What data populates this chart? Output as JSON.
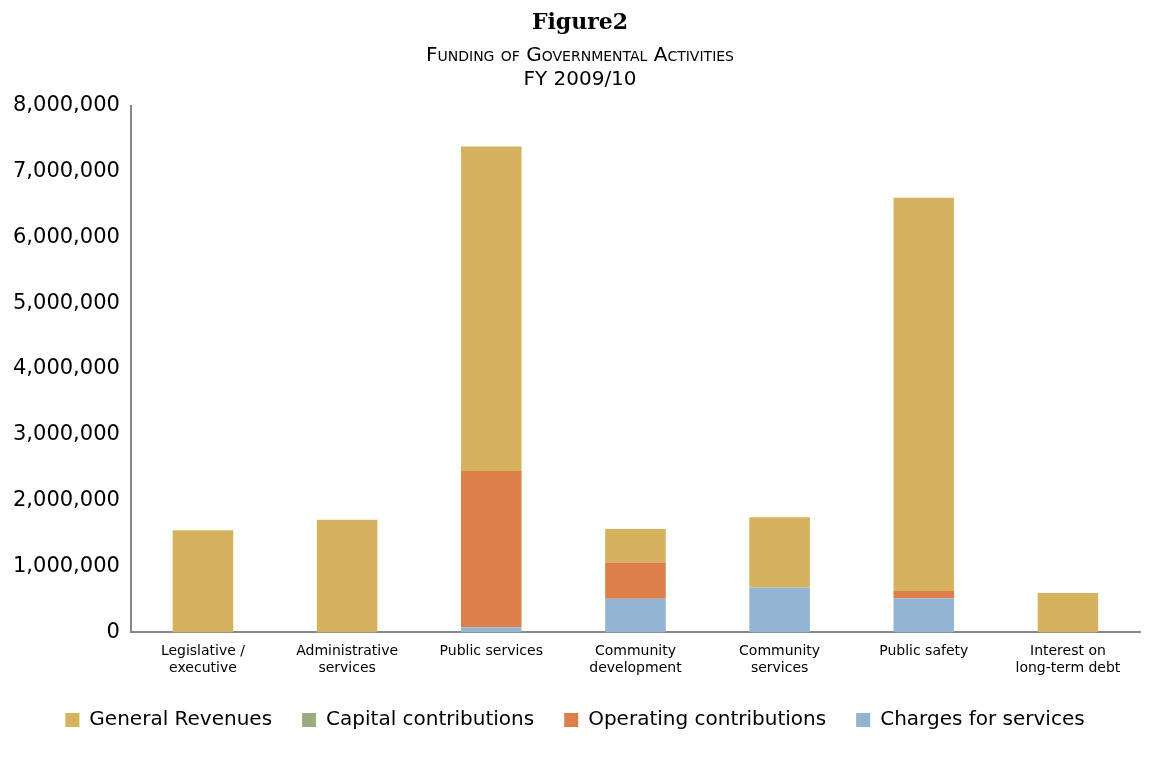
{
  "chart_data": {
    "type": "bar",
    "title": "Figure2",
    "subtitle": "Funding of Governmental Activities\nFY 2009/10",
    "categories": [
      "Legislative / executive",
      "Administrative services",
      "Public services",
      "Community development",
      "Community services",
      "Public safety",
      "Interest on long-term debt"
    ],
    "stacked": true,
    "series": [
      {
        "name": "Charges for services",
        "color": "#93b5d3",
        "values": [
          0,
          0,
          80000,
          510000,
          680000,
          520000,
          0
        ]
      },
      {
        "name": "Operating contributions",
        "color": "#dc7f49",
        "values": [
          0,
          0,
          2370000,
          550000,
          0,
          110000,
          0
        ]
      },
      {
        "name": "Capital contributions",
        "color": "#9bab80",
        "values": [
          0,
          0,
          0,
          0,
          0,
          0,
          0
        ]
      },
      {
        "name": "General Revenues",
        "color": "#d6b25e",
        "values": [
          1550000,
          1710000,
          4930000,
          510000,
          1070000,
          5970000,
          600000
        ]
      }
    ],
    "ylim": [
      0,
      8000000
    ],
    "yticks": [
      0,
      {
        "value": 1000000,
        "label": "1,000,000"
      },
      {
        "value": 2000000,
        "label": "2,000,000"
      },
      {
        "value": 3000000,
        "label": "3,000,000"
      },
      {
        "value": 4000000,
        "label": "4,000,000"
      },
      {
        "value": 5000000,
        "label": "5,000,000"
      },
      {
        "value": 6000000,
        "label": "6,000,000"
      },
      {
        "value": 7000000,
        "label": "7,000,000"
      },
      {
        "value": 8000000,
        "label": "8,000,000"
      }
    ],
    "grid": false,
    "legend": "bottom"
  }
}
